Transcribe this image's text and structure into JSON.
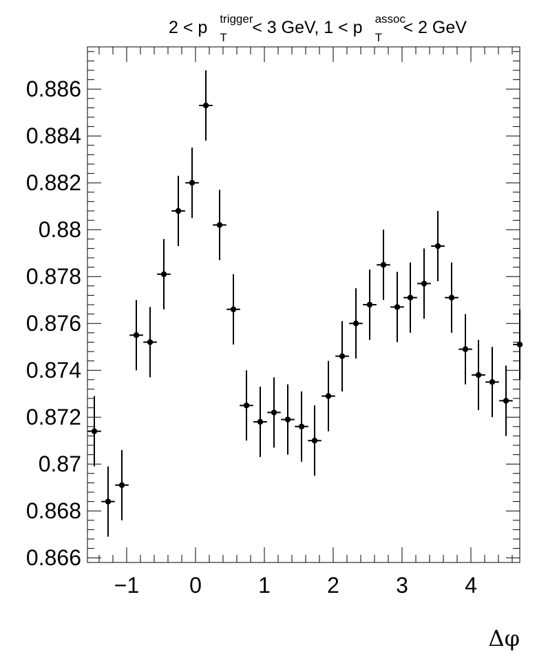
{
  "chart_data": {
    "type": "scatter",
    "title_parts": {
      "lead": "2 < p",
      "trigger_sup": "trigger",
      "trigger_sub": "T",
      "mid": " < 3 GeV, 1 < p",
      "assoc_sup": "assoc",
      "assoc_sub": "T",
      "tail": " < 2 GeV"
    },
    "xlabel": "Δφ",
    "ylabel": "",
    "xlim": [
      -1.57,
      4.71
    ],
    "ylim": [
      0.8658,
      0.8878
    ],
    "x_ticks": [
      "−1",
      "0",
      "1",
      "2",
      "3",
      "4"
    ],
    "y_ticks": [
      "0.866",
      "0.868",
      "0.87",
      "0.872",
      "0.874",
      "0.876",
      "0.878",
      "0.88",
      "0.882",
      "0.884",
      "0.886"
    ],
    "series": [
      {
        "x": [
          -1.47,
          -1.27,
          -1.07,
          -0.86,
          -0.66,
          -0.46,
          -0.25,
          -0.05,
          0.15,
          0.35,
          0.55,
          0.74,
          0.94,
          1.14,
          1.34,
          1.54,
          1.73,
          1.93,
          2.13,
          2.33,
          2.53,
          2.73,
          2.93,
          3.12,
          3.32,
          3.52,
          3.72,
          3.92,
          4.11,
          4.31,
          4.51,
          4.71
        ],
        "y": [
          0.8714,
          0.8684,
          0.8691,
          0.8755,
          0.8752,
          0.8781,
          0.8808,
          0.882,
          0.8853,
          0.8802,
          0.8766,
          0.8725,
          0.8718,
          0.8722,
          0.8719,
          0.8716,
          0.871,
          0.8729,
          0.8746,
          0.876,
          0.8768,
          0.8785,
          0.8767,
          0.8771,
          0.8777,
          0.8793,
          0.8771,
          0.8749,
          0.8738,
          0.8735,
          0.8727,
          0.8751
        ],
        "err": [
          0.0015,
          0.0015,
          0.0015,
          0.0015,
          0.0015,
          0.0015,
          0.0015,
          0.0015,
          0.0015,
          0.0015,
          0.0015,
          0.0015,
          0.0015,
          0.0015,
          0.0015,
          0.0015,
          0.0015,
          0.0015,
          0.0015,
          0.0015,
          0.0015,
          0.0015,
          0.0015,
          0.0015,
          0.0015,
          0.0015,
          0.0015,
          0.0015,
          0.0015,
          0.0015,
          0.0015,
          0.0015
        ],
        "xerr": 0.098
      }
    ],
    "grid": false,
    "legend": "none"
  }
}
